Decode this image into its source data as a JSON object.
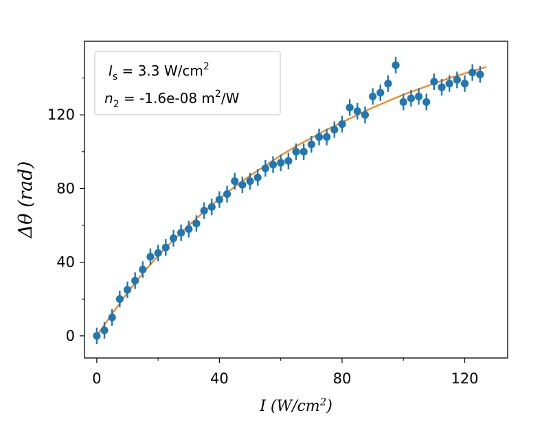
{
  "chart_data": {
    "type": "scatter",
    "xlabel": "I (W/cm²)",
    "ylabel": "Δθ (rad)",
    "xlim": [
      -4,
      134
    ],
    "ylim": [
      -12,
      160
    ],
    "xticks": [
      0,
      40,
      80,
      120
    ],
    "yticks": [
      0,
      40,
      80,
      120
    ],
    "grid": false,
    "legend_position": "top-left",
    "annotation": {
      "line1": {
        "var": "I",
        "sub": "s",
        "rest": " = 3.3 W/cm",
        "sup": "2"
      },
      "line2": {
        "var": "n",
        "sub": "2",
        "rest": " = -1.6e-08 m",
        "sup": "2",
        "tail": "/W"
      }
    },
    "series": [
      {
        "type": "errorbar-scatter",
        "color": "#1f77b4",
        "x": [
          0,
          2.5,
          5,
          7.5,
          10,
          12.5,
          15,
          17.5,
          20,
          22.5,
          25,
          27.5,
          30,
          32.5,
          35,
          37.5,
          40,
          42.5,
          45,
          47.5,
          50,
          52.5,
          55,
          57.5,
          60,
          62.5,
          65,
          67.5,
          70,
          72.5,
          75,
          77.5,
          80,
          82.5,
          85,
          87.5,
          90,
          92.5,
          95,
          97.5,
          100,
          102.5,
          105,
          107.5,
          110,
          112.5,
          115,
          117.5,
          120,
          122.5,
          125
        ],
        "y": [
          0,
          3,
          10,
          20,
          25,
          30,
          36,
          43,
          45,
          48,
          53,
          56,
          58,
          61,
          68,
          70,
          74,
          77,
          84,
          82,
          84,
          86,
          91,
          93,
          94,
          95,
          100,
          100,
          104,
          108,
          108,
          112,
          115,
          124,
          122,
          120,
          130,
          132,
          137,
          147,
          127,
          129,
          130,
          127,
          138,
          135,
          137,
          139,
          137,
          143,
          142
        ],
        "yerr": 4.5
      },
      {
        "type": "line",
        "color": "#ff7f0e",
        "x": [
          0,
          5,
          10,
          15,
          20,
          25,
          30,
          35,
          40,
          45,
          50,
          55,
          60,
          65,
          70,
          75,
          80,
          85,
          90,
          95,
          100,
          105,
          110,
          115,
          120,
          125,
          127
        ],
        "y": [
          0,
          12,
          23.5,
          34,
          43.5,
          52,
          60,
          67.5,
          74.5,
          81,
          87,
          92.5,
          98,
          103,
          107.5,
          112,
          116,
          120,
          124,
          127.5,
          131,
          134,
          137,
          140,
          142.5,
          145,
          146
        ]
      }
    ]
  }
}
